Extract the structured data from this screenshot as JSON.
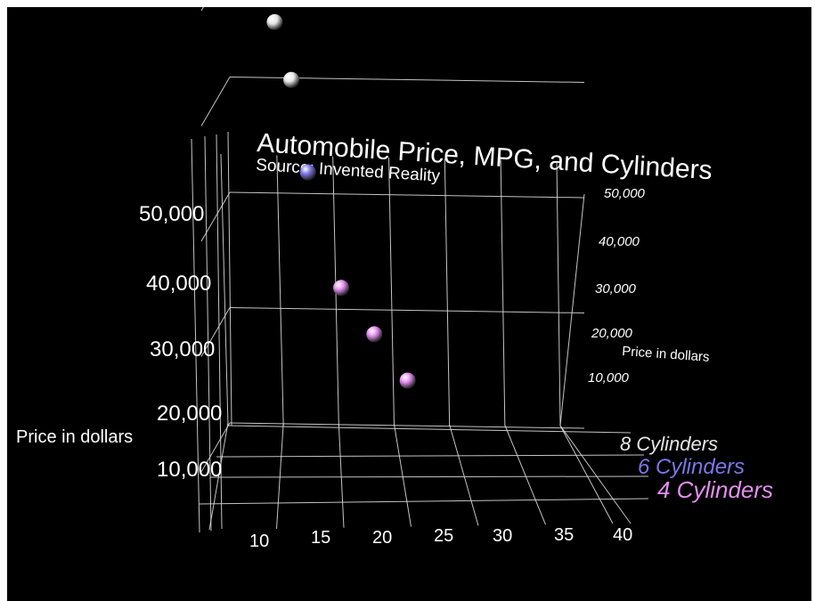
{
  "colors": {
    "background": "#000000",
    "grid": "#d9d9d9",
    "text": "#ffffff",
    "cyl8": "#e6e6e6",
    "cyl6": "#7b76e6",
    "cyl4": "#e58ef2"
  },
  "chart_data": {
    "type": "scatter",
    "view": "3d",
    "title": "Automobile Price, MPG, and Cylinders",
    "subtitle": "Source: Invented Reality",
    "ylabel": "Price in dollars",
    "ylabel_right": "Price in dollars",
    "x_ticks": [
      "10",
      "15",
      "20",
      "25",
      "30",
      "35",
      "40"
    ],
    "y_ticks_left": [
      "10,000",
      "20,000",
      "30,000",
      "40,000",
      "50,000"
    ],
    "y_ticks_right": [
      "10,000",
      "20,000",
      "30,000",
      "40,000",
      "50,000"
    ],
    "xlim": [
      10,
      40
    ],
    "ylim": [
      10000,
      50000
    ],
    "series": [
      {
        "name": "8 Cylinders",
        "color": "#e6e6e6",
        "points": [
          {
            "x": 11,
            "y": 45000
          },
          {
            "x": 12.5,
            "y": 40000
          }
        ]
      },
      {
        "name": "6 Cylinders",
        "color": "#7b76e6",
        "points": [
          {
            "x": 14,
            "y": 32000
          }
        ]
      },
      {
        "name": "4 Cylinders",
        "color": "#e58ef2",
        "points": [
          {
            "x": 17,
            "y": 22000
          },
          {
            "x": 20,
            "y": 18000
          },
          {
            "x": 23,
            "y": 14000
          }
        ]
      }
    ]
  }
}
